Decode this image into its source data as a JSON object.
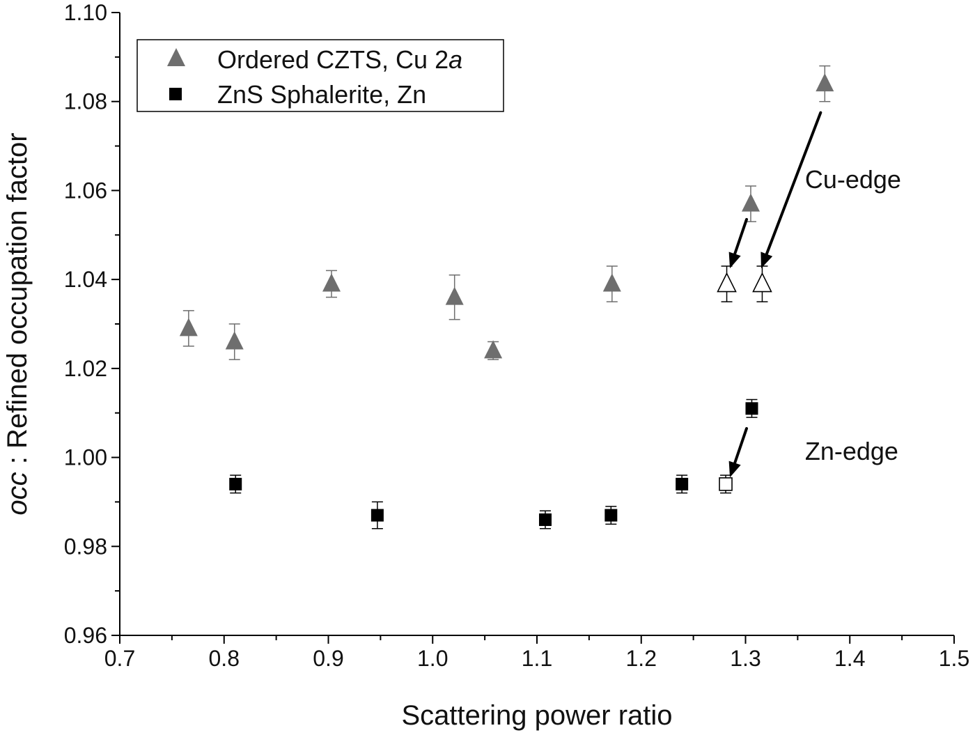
{
  "chart_data": {
    "type": "scatter",
    "title": "",
    "xlabel": "Scattering power ratio",
    "ylabel_italic": "occ",
    "ylabel_rest": " : Refined occupation factor",
    "xlim": [
      0.7,
      1.5
    ],
    "ylim": [
      0.96,
      1.1
    ],
    "xticks": [
      "0.7",
      "0.8",
      "0.9",
      "1.0",
      "1.1",
      "1.2",
      "1.3",
      "1.4",
      "1.5"
    ],
    "yticks": [
      "0.96",
      "0.98",
      "1.00",
      "1.02",
      "1.04",
      "1.06",
      "1.08",
      "1.10"
    ],
    "grid": false,
    "legend_position": "top-left",
    "series": [
      {
        "name_main": "Ordered CZTS, Cu 2",
        "name_italic": "a",
        "marker": "triangle",
        "color": "#6e6e6e",
        "points": [
          {
            "x": 0.766,
            "y": 1.029,
            "err": 0.004
          },
          {
            "x": 0.81,
            "y": 1.026,
            "err": 0.004
          },
          {
            "x": 0.903,
            "y": 1.039,
            "err": 0.003
          },
          {
            "x": 1.021,
            "y": 1.036,
            "err": 0.005
          },
          {
            "x": 1.058,
            "y": 1.024,
            "err": 0.002
          },
          {
            "x": 1.172,
            "y": 1.039,
            "err": 0.004
          },
          {
            "x": 1.305,
            "y": 1.057,
            "err": 0.004
          },
          {
            "x": 1.376,
            "y": 1.084,
            "err": 0.004
          }
        ],
        "corrected_points": [
          {
            "x": 1.282,
            "y": 1.039,
            "err": 0.004
          },
          {
            "x": 1.316,
            "y": 1.039,
            "err": 0.004
          }
        ]
      },
      {
        "name": "ZnS Sphalerite, Zn",
        "marker": "square",
        "color": "#000000",
        "points": [
          {
            "x": 0.811,
            "y": 0.994,
            "err": 0.002
          },
          {
            "x": 0.947,
            "y": 0.987,
            "err": 0.003
          },
          {
            "x": 1.108,
            "y": 0.986,
            "err": 0.002
          },
          {
            "x": 1.171,
            "y": 0.987,
            "err": 0.002
          },
          {
            "x": 1.239,
            "y": 0.994,
            "err": 0.002
          },
          {
            "x": 1.306,
            "y": 1.011,
            "err": 0.002
          }
        ],
        "corrected_points": [
          {
            "x": 1.281,
            "y": 0.994,
            "err": 0.002
          }
        ]
      }
    ],
    "annotations": [
      {
        "text": "Cu-edge",
        "x": 1.357,
        "y": 1.0605
      },
      {
        "text": "Zn-edge",
        "x": 1.357,
        "y": 0.9995
      }
    ],
    "arrows": [
      {
        "from": [
          1.301,
          1.0535
        ],
        "to": [
          1.285,
          1.0425
        ]
      },
      {
        "from": [
          1.372,
          1.0775
        ],
        "to": [
          1.315,
          1.0425
        ]
      },
      {
        "from": [
          1.301,
          1.0065
        ],
        "to": [
          1.285,
          0.9955
        ]
      }
    ]
  }
}
